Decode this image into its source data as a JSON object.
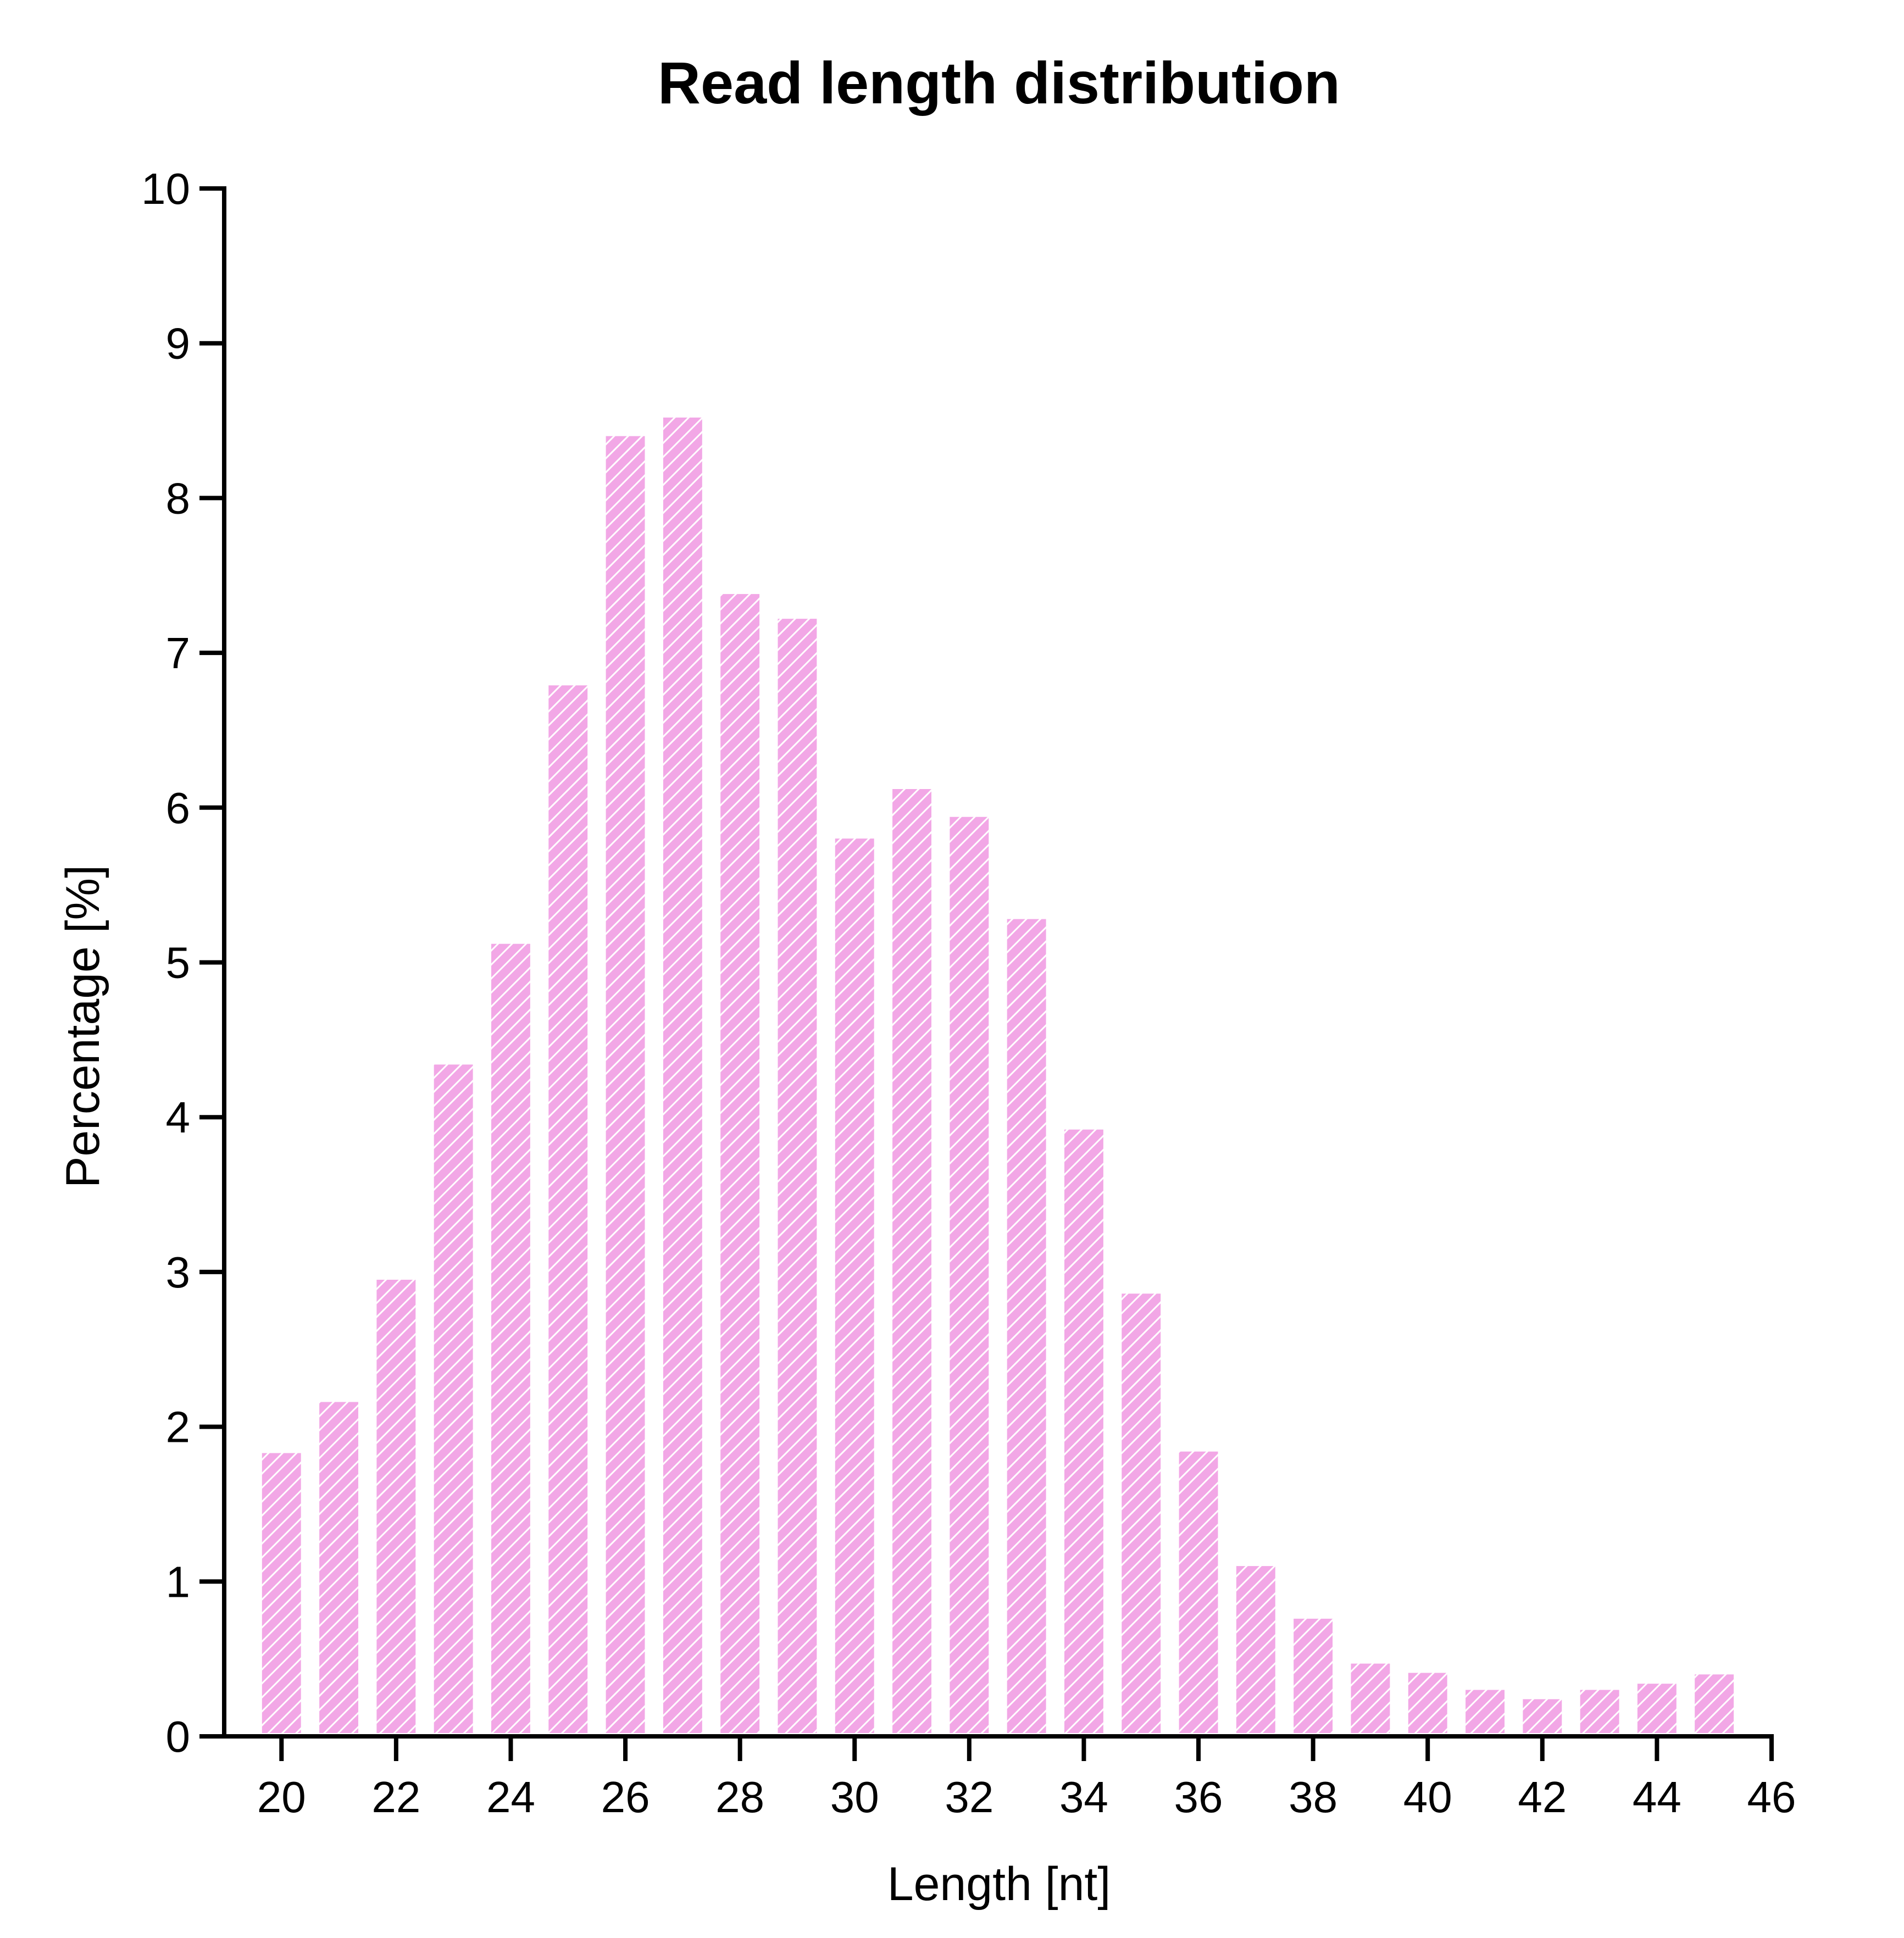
{
  "chart_data": {
    "type": "bar",
    "title": "Read length distribution",
    "xlabel": "Length [nt]",
    "ylabel": "Percentage [%]",
    "xlim": [
      19,
      46
    ],
    "ylim": [
      0,
      10
    ],
    "x_ticks": [
      20,
      22,
      24,
      26,
      28,
      30,
      32,
      34,
      36,
      38,
      40,
      42,
      44,
      46
    ],
    "y_ticks": [
      0,
      1,
      2,
      3,
      4,
      5,
      6,
      7,
      8,
      9,
      10
    ],
    "categories": [
      20,
      21,
      22,
      23,
      24,
      25,
      26,
      27,
      28,
      29,
      30,
      31,
      32,
      33,
      34,
      35,
      36,
      37,
      38,
      39,
      40,
      41,
      42,
      43,
      44,
      45
    ],
    "values": [
      1.83,
      2.16,
      2.95,
      4.34,
      5.12,
      6.79,
      8.4,
      8.52,
      7.38,
      7.22,
      5.8,
      6.12,
      5.94,
      5.28,
      3.92,
      2.86,
      1.84,
      1.1,
      0.76,
      0.47,
      0.41,
      0.3,
      0.24,
      0.3,
      0.34,
      0.4
    ],
    "bar_color": "#f2a7e6",
    "bar_pattern": "diagonal-hatch",
    "grid": false
  }
}
